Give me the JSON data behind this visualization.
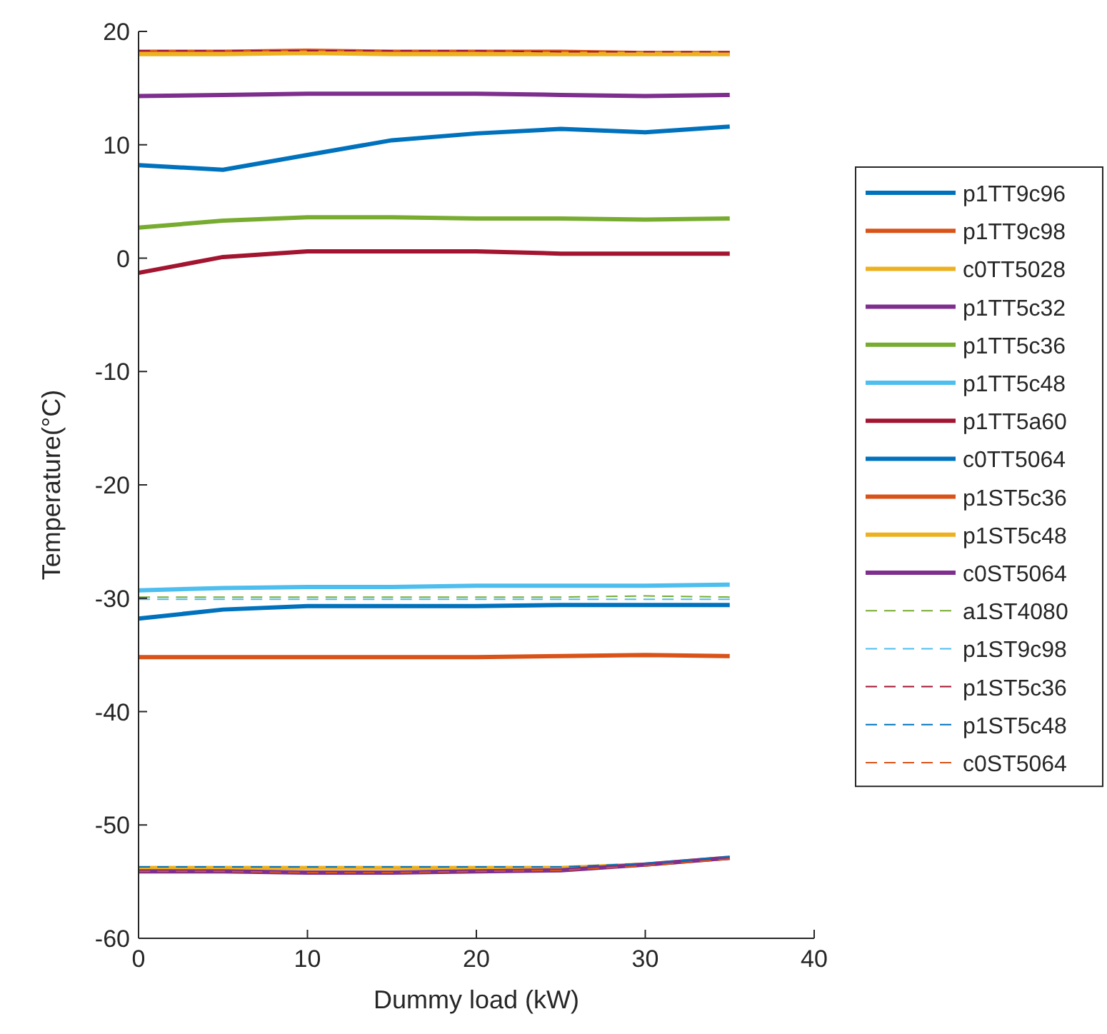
{
  "chart_data": {
    "type": "line",
    "xlabel": "Dummy load (kW)",
    "ylabel": "Temperature(°C)",
    "x": [
      0,
      5,
      10,
      15,
      20,
      25,
      30,
      35
    ],
    "xlim": [
      0,
      40
    ],
    "xticks": [
      0,
      10,
      20,
      30,
      40
    ],
    "ylim": [
      -60,
      20
    ],
    "yticks": [
      -60,
      -50,
      -40,
      -30,
      -20,
      -10,
      0,
      10,
      20
    ],
    "legend": "right",
    "grid": false,
    "marker": "none",
    "series": [
      {
        "name": "p1TT9c96",
        "color": "#0072bd",
        "line_style": "solid",
        "values": [
          8.2,
          7.8,
          9.1,
          10.4,
          11.0,
          11.4,
          11.1,
          11.6
        ]
      },
      {
        "name": "p1TT9c98",
        "color": "#d95319",
        "line_style": "solid",
        "values": [
          18.2,
          18.2,
          18.3,
          18.2,
          18.2,
          18.2,
          18.1,
          18.1
        ]
      },
      {
        "name": "c0TT5028",
        "color": "#edb120",
        "line_style": "solid",
        "values": [
          18.0,
          18.0,
          18.1,
          18.0,
          18.0,
          18.0,
          18.0,
          18.0
        ]
      },
      {
        "name": "p1TT5c32",
        "color": "#7e2f8e",
        "line_style": "solid",
        "values": [
          14.3,
          14.4,
          14.5,
          14.5,
          14.5,
          14.4,
          14.3,
          14.4
        ]
      },
      {
        "name": "p1TT5c36",
        "color": "#77ac30",
        "line_style": "solid",
        "values": [
          2.7,
          3.3,
          3.6,
          3.6,
          3.5,
          3.5,
          3.4,
          3.5
        ]
      },
      {
        "name": "p1TT5c48",
        "color": "#4dbeee",
        "line_style": "solid",
        "values": [
          -29.3,
          -29.1,
          -29.0,
          -29.0,
          -28.9,
          -28.9,
          -28.9,
          -28.8
        ]
      },
      {
        "name": "p1TT5a60",
        "color": "#a2142f",
        "line_style": "solid",
        "values": [
          -1.3,
          0.1,
          0.6,
          0.6,
          0.6,
          0.4,
          0.4,
          0.4
        ]
      },
      {
        "name": "c0TT5064",
        "color": "#0072bd",
        "line_style": "solid",
        "values": [
          -31.8,
          -31.0,
          -30.7,
          -30.7,
          -30.7,
          -30.6,
          -30.6,
          -30.6
        ]
      },
      {
        "name": "p1ST5c36",
        "color": "#d95319",
        "line_style": "solid",
        "values": [
          -35.2,
          -35.2,
          -35.2,
          -35.2,
          -35.2,
          -35.1,
          -35.0,
          -35.1
        ]
      },
      {
        "name": "p1ST5c48",
        "color": "#edb120",
        "line_style": "solid",
        "values": [
          -53.8,
          -53.8,
          -53.8,
          -53.8,
          -53.8,
          -53.8,
          -53.5,
          -52.9
        ]
      },
      {
        "name": "c0ST5064",
        "color": "#7e2f8e",
        "line_style": "solid",
        "values": [
          -54.1,
          -54.1,
          -54.2,
          -54.2,
          -54.1,
          -54.0,
          -53.5,
          -52.9
        ]
      },
      {
        "name": "a1ST4080",
        "color": "#77ac30",
        "line_style": "dashed",
        "values": [
          -29.9,
          -29.9,
          -29.9,
          -29.9,
          -29.9,
          -29.9,
          -29.8,
          -29.9
        ]
      },
      {
        "name": "p1ST9c98",
        "color": "#4dbeee",
        "line_style": "dashed",
        "values": [
          -30.1,
          -30.1,
          -30.1,
          -30.1,
          -30.1,
          -30.1,
          -30.1,
          -30.1
        ]
      },
      {
        "name": "p1ST5c36",
        "color": "#a2142f",
        "line_style": "dashed",
        "values": [
          18.3,
          18.3,
          18.3,
          18.3,
          18.3,
          18.2,
          18.2,
          18.2
        ]
      },
      {
        "name": "p1ST5c48",
        "color": "#0072bd",
        "line_style": "dashed",
        "values": [
          -53.7,
          -53.7,
          -53.7,
          -53.7,
          -53.7,
          -53.7,
          -53.4,
          -52.8
        ]
      },
      {
        "name": "c0ST5064",
        "color": "#d95319",
        "line_style": "dashed",
        "values": [
          -54.1,
          -54.1,
          -54.2,
          -54.2,
          -54.1,
          -54.0,
          -53.6,
          -53.0
        ]
      }
    ]
  }
}
